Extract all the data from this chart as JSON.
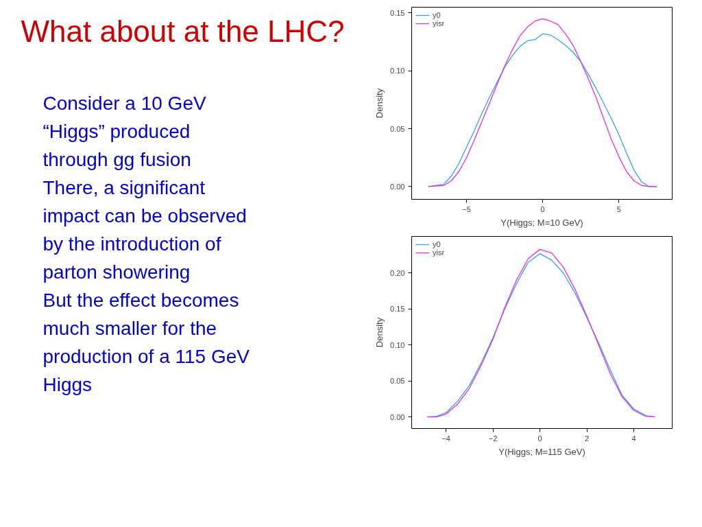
{
  "chart_data": [
    {
      "type": "other",
      "title": "What about at the LHC?",
      "annotations": [
        "Consider a 10 GeV “Higgs” produced through gg fusion",
        "There, a significant impact can be observed by the introduction of parton showering",
        "But the effect becomes much smaller for the production of a 115 GeV Higgs"
      ]
    },
    {
      "type": "line",
      "xlabel": "Y(Higgs; M=10 GeV)",
      "ylabel": "Density",
      "legend": "top",
      "grid": false,
      "xlim": [
        -8.6,
        8.5
      ],
      "xticks": [
        -5,
        0,
        5
      ],
      "ylim": [
        -0.011,
        0.155
      ],
      "yticks": [
        {
          "value": 0,
          "label": "0.00"
        },
        {
          "value": 0.05,
          "label": "0.05"
        },
        {
          "value": 0.1,
          "label": "0.10"
        },
        {
          "value": 0.15,
          "label": "0.15"
        }
      ],
      "x": [
        -7.5,
        -6.5,
        -6,
        -5.5,
        -5,
        -4.5,
        -4,
        -3.5,
        -3,
        -2.5,
        -2,
        -1.5,
        -1,
        -0.5,
        0,
        0.5,
        1,
        1.5,
        2,
        2.5,
        3,
        3.5,
        4,
        4.5,
        5,
        5.5,
        6,
        6.5,
        7,
        7.5
      ],
      "series": [
        {
          "name": "y0",
          "color": "#2fa4e7",
          "values": [
            0,
            0.002,
            0.009,
            0.02,
            0.034,
            0.048,
            0.063,
            0.077,
            0.09,
            0.103,
            0.113,
            0.121,
            0.126,
            0.127,
            0.132,
            0.131,
            0.127,
            0.122,
            0.116,
            0.108,
            0.097,
            0.085,
            0.072,
            0.059,
            0.045,
            0.029,
            0.014,
            0.004,
            0,
            0
          ]
        },
        {
          "name": "yisr",
          "color": "#e62ee6",
          "values": [
            0,
            0.001,
            0.005,
            0.013,
            0.025,
            0.04,
            0.056,
            0.072,
            0.088,
            0.104,
            0.118,
            0.13,
            0.138,
            0.143,
            0.145,
            0.143,
            0.14,
            0.132,
            0.122,
            0.108,
            0.093,
            0.077,
            0.059,
            0.041,
            0.026,
            0.013,
            0.005,
            0.001,
            0,
            0
          ]
        }
      ]
    },
    {
      "type": "line",
      "xlabel": "Y(Higgs; M=115 GeV)",
      "ylabel": "Density",
      "legend": "top",
      "grid": false,
      "xlim": [
        -5.46,
        5.63
      ],
      "xticks": [
        -4,
        -2,
        0,
        2,
        4
      ],
      "ylim": [
        -0.016,
        0.251
      ],
      "yticks": [
        {
          "value": 0,
          "label": "0.00"
        },
        {
          "value": 0.05,
          "label": "0.05"
        },
        {
          "value": 0.1,
          "label": "0.10"
        },
        {
          "value": 0.15,
          "label": "0.15"
        },
        {
          "value": 0.2,
          "label": "0.20"
        }
      ],
      "x": [
        -4.8,
        -4.4,
        -4,
        -3.5,
        -3,
        -2.5,
        -2,
        -1.5,
        -1,
        -0.5,
        0,
        0.5,
        1,
        1.5,
        2,
        2.5,
        3,
        3.5,
        4,
        4.5,
        4.9
      ],
      "series": [
        {
          "name": "y0",
          "color": "#2fa4e7",
          "values": [
            0,
            0.001,
            0.006,
            0.022,
            0.044,
            0.075,
            0.11,
            0.15,
            0.185,
            0.215,
            0.227,
            0.218,
            0.2,
            0.172,
            0.138,
            0.103,
            0.065,
            0.03,
            0.011,
            0.002,
            0
          ]
        },
        {
          "name": "yisr",
          "color": "#e62ee6",
          "values": [
            0,
            0,
            0.004,
            0.018,
            0.04,
            0.072,
            0.108,
            0.152,
            0.19,
            0.22,
            0.233,
            0.228,
            0.208,
            0.177,
            0.14,
            0.1,
            0.06,
            0.028,
            0.009,
            0.001,
            0
          ]
        }
      ]
    }
  ]
}
